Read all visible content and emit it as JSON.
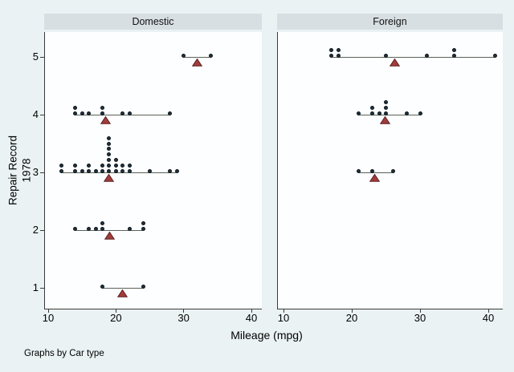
{
  "figure": {
    "y_axis_title": "Repair Record 1978",
    "x_axis_title": "Mileage (mpg)",
    "caption": "Graphs by Car type",
    "x_ticks": [
      10,
      20,
      30,
      40
    ],
    "y_ticks": [
      5,
      4,
      3,
      2,
      1
    ],
    "xlim": [
      9.3,
      41.8
    ],
    "grid": false,
    "legend": "none"
  },
  "chart_data": {
    "type": "scatter",
    "subtype": "grouped-dot-plot-with-mean-markers",
    "xlabel": "Mileage (mpg)",
    "ylabel": "Repair Record 1978",
    "by_note": "Graphs by Car type",
    "mean_marker": "triangle",
    "panels": [
      {
        "title": "Domestic",
        "groups": [
          {
            "y": 5,
            "values": [
              30,
              34
            ],
            "mean": 32
          },
          {
            "y": 4,
            "values": [
              14,
              14,
              15,
              16,
              18,
              18,
              21,
              22,
              28
            ],
            "mean": 18.44
          },
          {
            "y": 3,
            "values": [
              12,
              12,
              14,
              14,
              15,
              16,
              16,
              17,
              18,
              18,
              19,
              19,
              19,
              19,
              19,
              19,
              19,
              20,
              20,
              20,
              21,
              21,
              22,
              22,
              25,
              28,
              29
            ],
            "mean": 19
          },
          {
            "y": 2,
            "values": [
              14,
              16,
              17,
              18,
              18,
              22,
              24,
              24
            ],
            "mean": 19.13
          },
          {
            "y": 1,
            "values": [
              18,
              24
            ],
            "mean": 21
          }
        ]
      },
      {
        "title": "Foreign",
        "groups": [
          {
            "y": 5,
            "values": [
              17,
              17,
              18,
              18,
              25,
              31,
              35,
              35,
              41
            ],
            "mean": 26.33
          },
          {
            "y": 4,
            "values": [
              21,
              23,
              23,
              24,
              25,
              25,
              25,
              28,
              30
            ],
            "mean": 24.89
          },
          {
            "y": 3,
            "values": [
              21,
              23,
              26
            ],
            "mean": 23.33
          }
        ]
      }
    ]
  },
  "colors": {
    "background": "#eaf2f3",
    "panel_background": "#fdfeff",
    "header_background": "#d8dfe3",
    "dot": "#20313d",
    "span_line": "#5a6358",
    "mean_fill": "#a23c3c",
    "mean_border": "#5c1f1f",
    "axis": "#3a3a3a"
  }
}
